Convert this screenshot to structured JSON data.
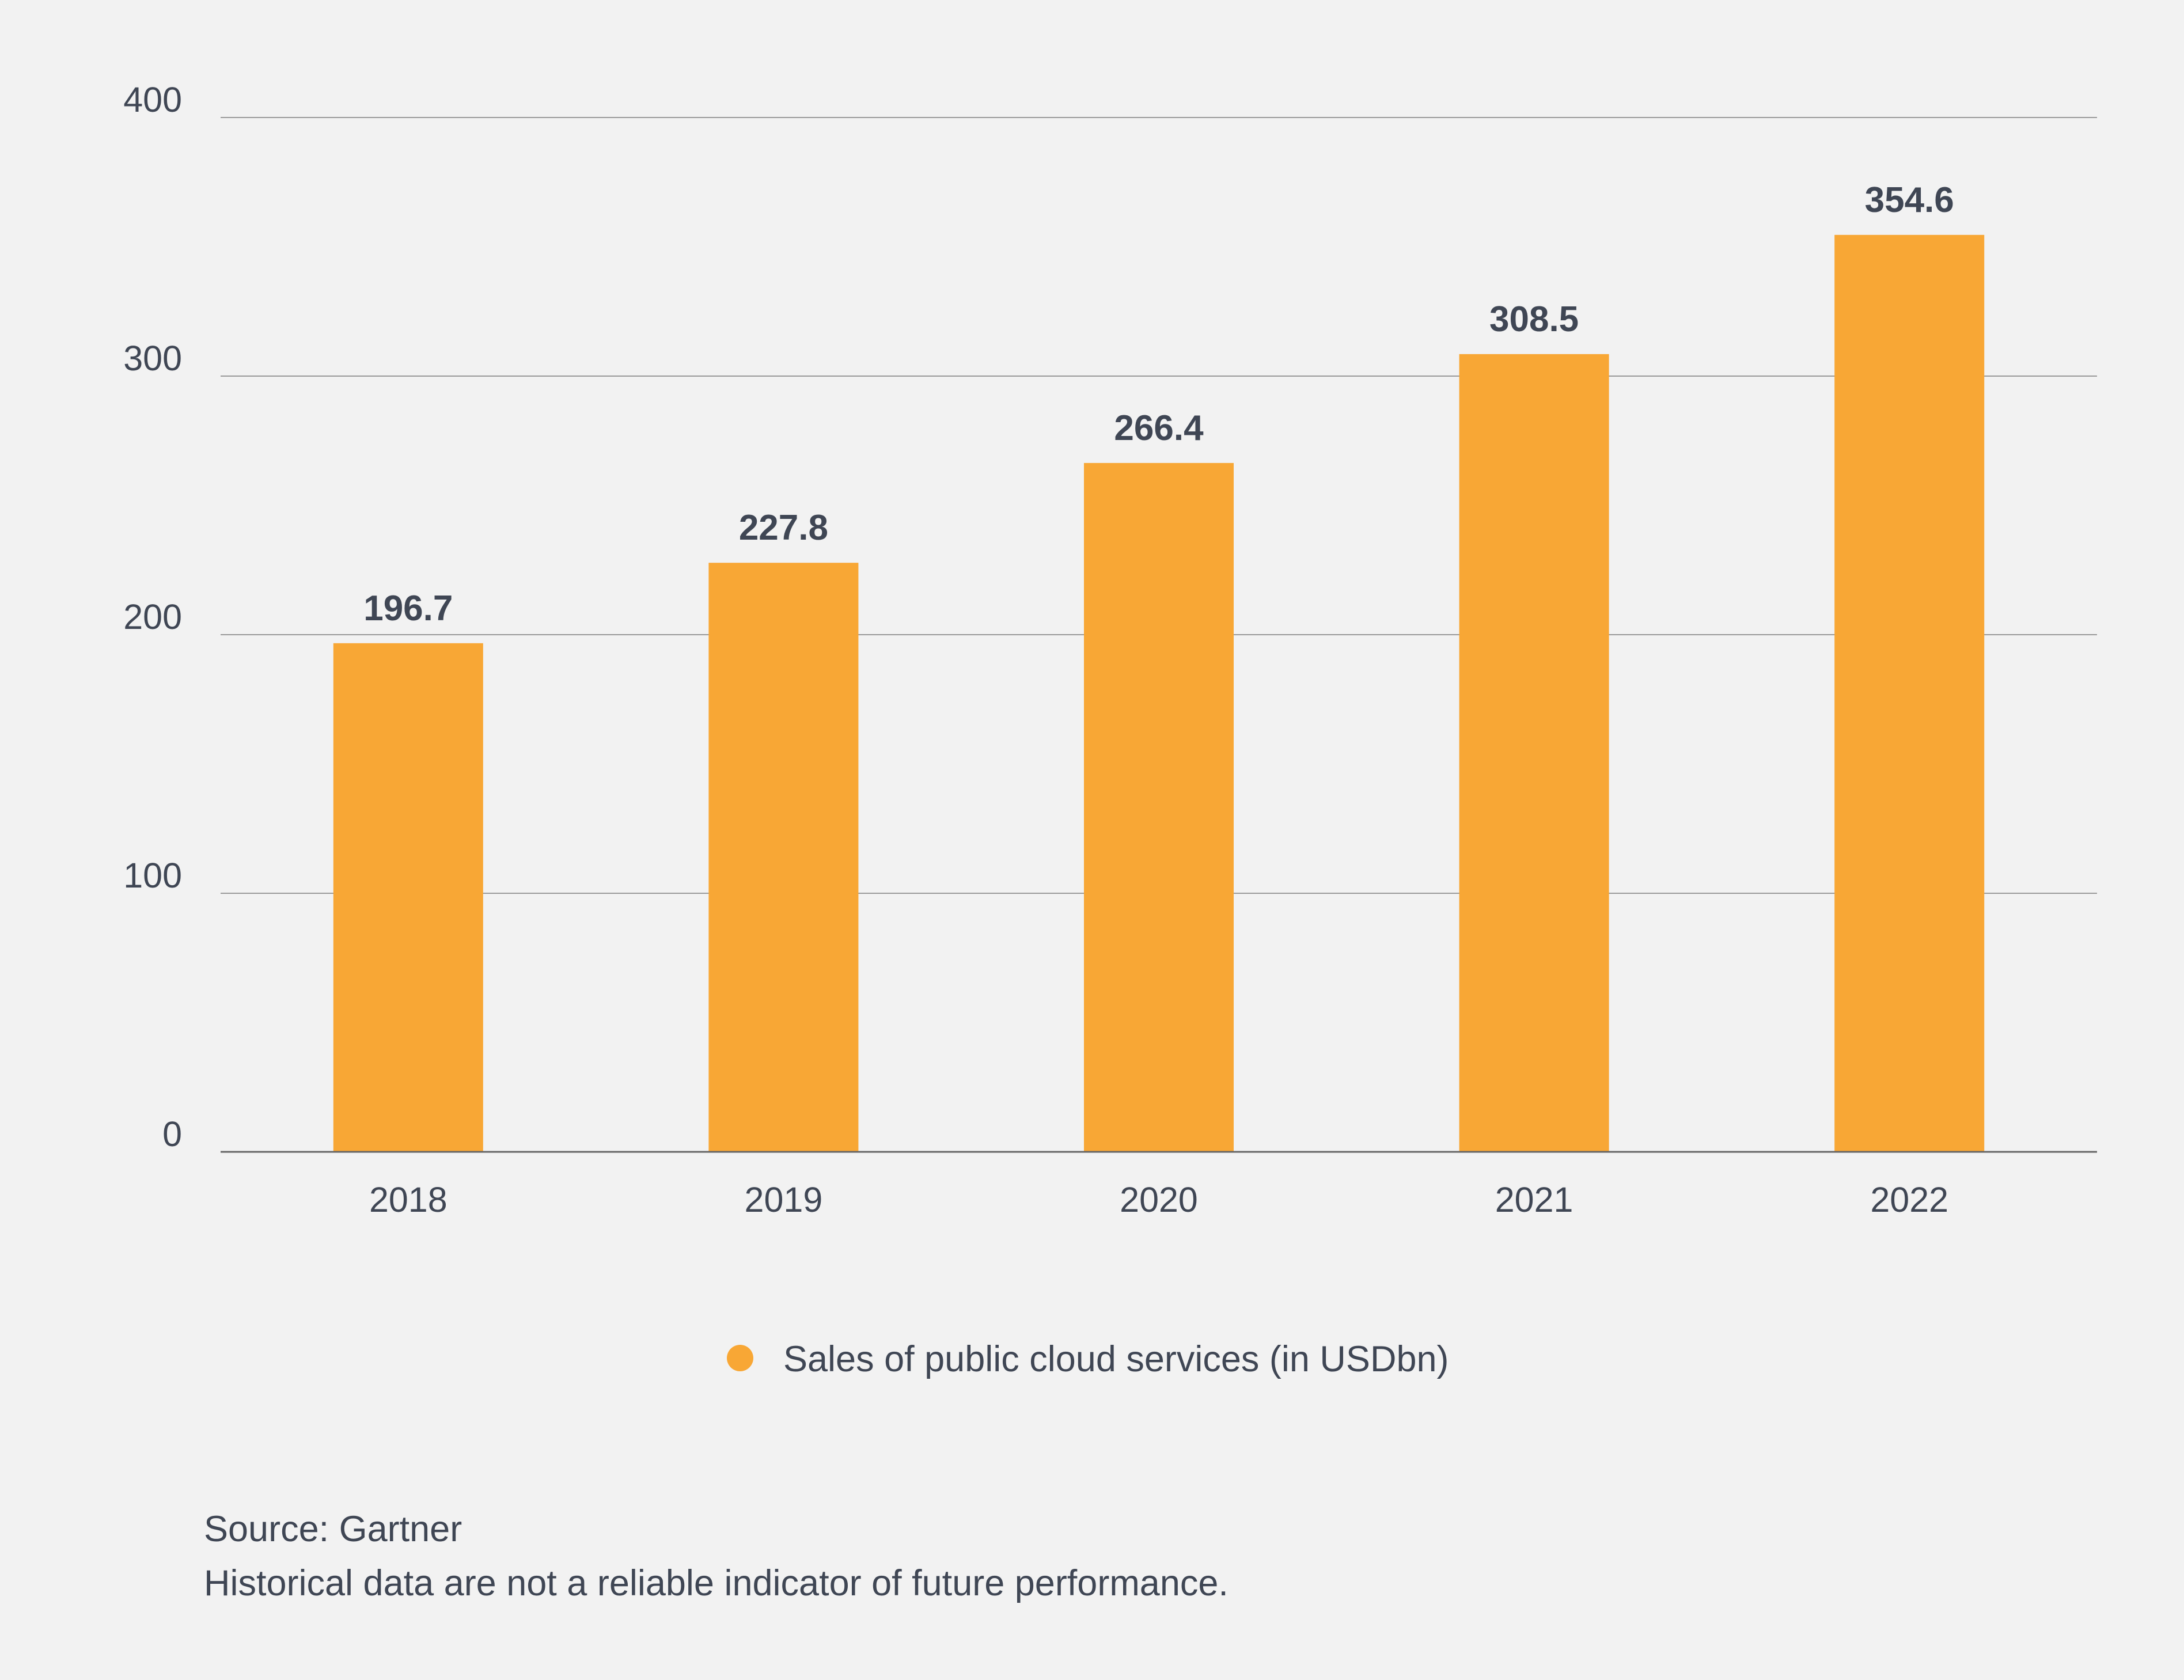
{
  "chart_data": {
    "type": "bar",
    "categories": [
      "2018",
      "2019",
      "2020",
      "2021",
      "2022"
    ],
    "series": [
      {
        "name": "Sales of public cloud services (in USDbn)",
        "values": [
          196.7,
          227.8,
          266.4,
          308.5,
          354.6
        ]
      }
    ],
    "data_labels": [
      "196.7",
      "227.8",
      "266.4",
      "308.5",
      "354.6"
    ],
    "ylim": [
      0,
      400
    ],
    "yticks": [
      0,
      100,
      200,
      300,
      400
    ],
    "grid": true,
    "legend_position": "bottom-center",
    "title": "",
    "xlabel": "",
    "ylabel": ""
  },
  "colors": {
    "background": "#f2f2f2",
    "bar": "#f8a735",
    "text": "#3f4654",
    "grid": "#9a9a9a",
    "axis": "#666666"
  },
  "footer": {
    "source": "Source: Gartner",
    "disclaimer": "Historical data are not a reliable indicator of future performance."
  }
}
